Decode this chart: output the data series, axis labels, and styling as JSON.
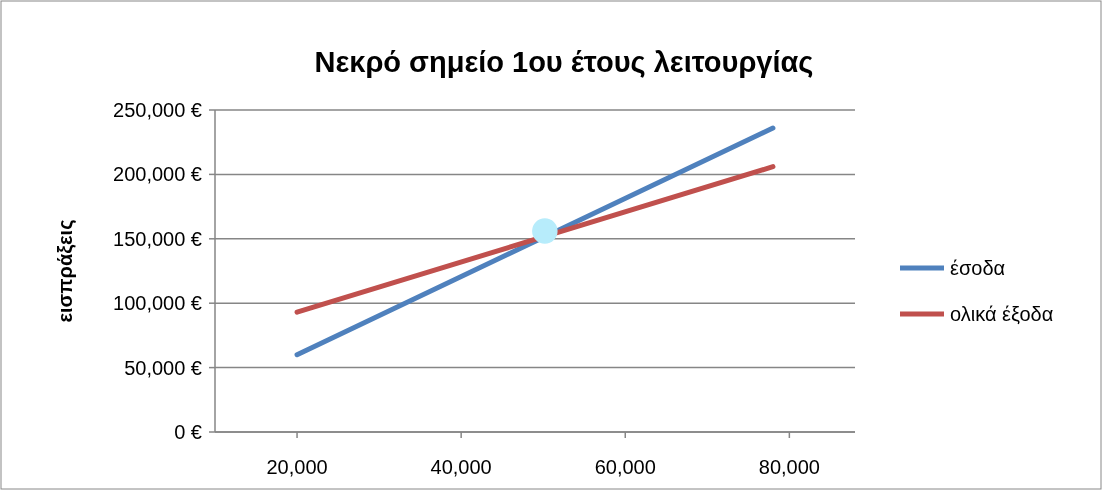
{
  "chart_data": {
    "type": "line",
    "title": "Νεκρό σημείο 1ου έτους λειτουργίας",
    "ylabel": "εισπράξεις",
    "xlim": [
      10000,
      88000
    ],
    "xticks": [
      {
        "value": 20000,
        "label": "20,000"
      },
      {
        "value": 40000,
        "label": "40,000"
      },
      {
        "value": 60000,
        "label": "60,000"
      },
      {
        "value": 80000,
        "label": "80,000"
      }
    ],
    "ylim": [
      0,
      250000
    ],
    "yticks": [
      {
        "value": 0,
        "label": "0 €"
      },
      {
        "value": 50000,
        "label": "50,000 €"
      },
      {
        "value": 100000,
        "label": "100,000 €"
      },
      {
        "value": 150000,
        "label": "150,000 €"
      },
      {
        "value": 200000,
        "label": "200,000 €"
      },
      {
        "value": 250000,
        "label": "250,000 €"
      }
    ],
    "grid": "y",
    "legend": "right",
    "series": [
      {
        "name": "έσοδα",
        "color": "#4f81bd",
        "x": [
          20000,
          78000
        ],
        "values": [
          60000,
          236000
        ]
      },
      {
        "name": "ολικά έξοδα",
        "color": "#c0504d",
        "x": [
          20000,
          78000
        ],
        "values": [
          93000,
          206000
        ]
      },
      {
        "type": "scatter",
        "color": "#b7ecfb",
        "x": [
          50200
        ],
        "values": [
          156000
        ],
        "marker": "circle"
      }
    ]
  }
}
